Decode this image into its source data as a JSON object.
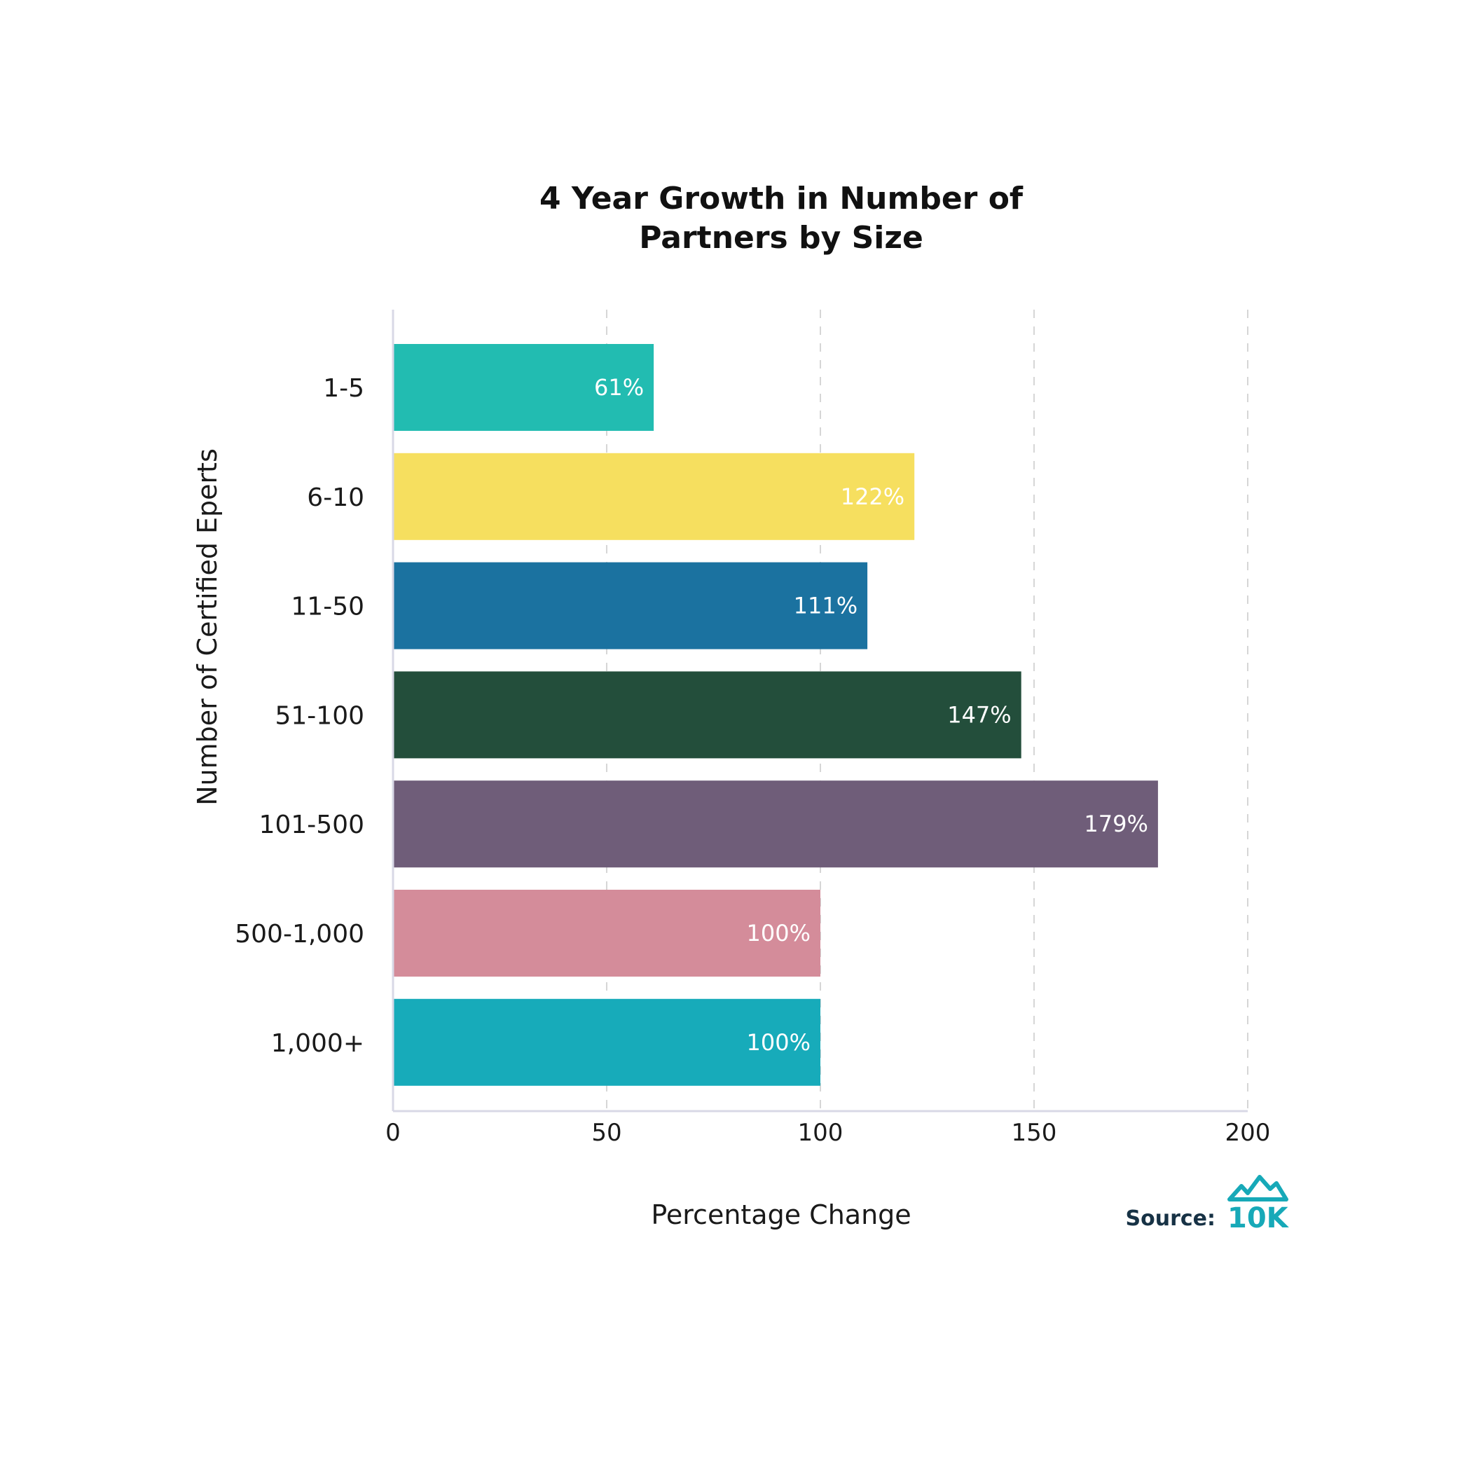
{
  "chart_data": {
    "type": "bar",
    "orientation": "horizontal",
    "title_lines": [
      "4 Year Growth in Number of",
      "Partners by Size"
    ],
    "xlabel": "Percentage Change",
    "ylabel": "Number of Certified Eperts",
    "xlim": [
      0,
      200
    ],
    "xticks": [
      0,
      50,
      100,
      150,
      200
    ],
    "grid": "vertical dashed",
    "categories": [
      "1-5",
      "6-10",
      "11-50",
      "51-100",
      "101-500",
      "500-1,000",
      "1,000+"
    ],
    "values": [
      61,
      122,
      111,
      147,
      179,
      100,
      100
    ],
    "data_labels": [
      "61%",
      "122%",
      "111%",
      "147%",
      "179%",
      "100%",
      "100%"
    ],
    "colors": [
      "#22bcb1",
      "#f6df5f",
      "#1b72a0",
      "#234e3b",
      "#6f5d79",
      "#d48c9a",
      "#17abba"
    ]
  },
  "source": {
    "label": "Source:",
    "logo_text": "10K",
    "logo_name": "10k-mountain-logo"
  },
  "colors": {
    "axis": "#d8d8e6",
    "grid": "#d6d6d6",
    "text": "#1a1a1a",
    "source": "#173245",
    "logo": "#17a9b8"
  }
}
